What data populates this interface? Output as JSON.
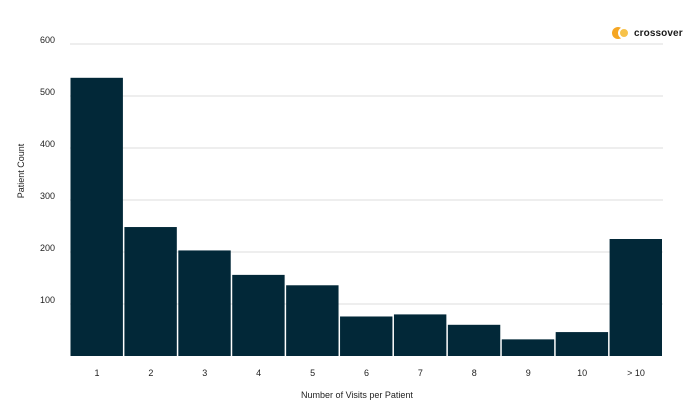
{
  "brand": {
    "name": "crossover",
    "icon": "crossover-logo-icon",
    "colors": [
      "#f5a623",
      "#f7c24a"
    ]
  },
  "chart_data": {
    "type": "bar",
    "xlabel": "Number of Visits per Patient",
    "ylabel": "Patient Count",
    "categories": [
      "1",
      "2",
      "3",
      "4",
      "5",
      "6",
      "7",
      "8",
      "9",
      "10",
      "> 10"
    ],
    "values": [
      535,
      248,
      203,
      156,
      136,
      76,
      80,
      60,
      32,
      46,
      225
    ],
    "ylim": [
      0,
      600
    ],
    "yticks": [
      100,
      200,
      300,
      400,
      500,
      600
    ],
    "grid": true,
    "legend": "none",
    "bar_color": "#022838",
    "grid_color": "#dddddd"
  }
}
